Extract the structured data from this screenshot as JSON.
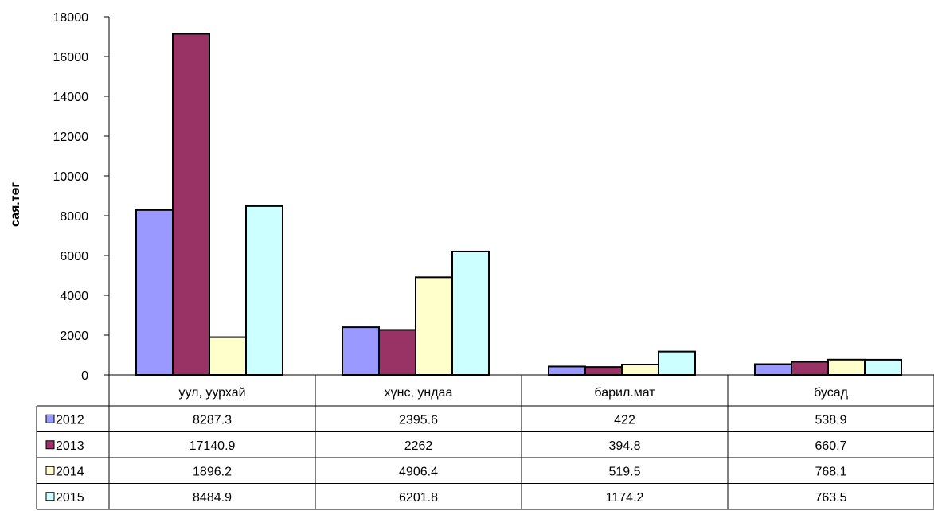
{
  "chart_data": {
    "type": "bar",
    "title": "",
    "xlabel": "",
    "ylabel": "сая.төг",
    "ylim": [
      0,
      18000
    ],
    "yticks": [
      0,
      2000,
      4000,
      6000,
      8000,
      10000,
      12000,
      14000,
      16000,
      18000
    ],
    "grid": false,
    "legend": "data-table",
    "categories": [
      "уул, уурхай",
      "хүнс, ундаа",
      "барил.мат",
      "бусад"
    ],
    "series": [
      {
        "name": "2012",
        "color": "#9999FF",
        "values": [
          8287.3,
          2395.6,
          422,
          538.9
        ],
        "labels": [
          "8287.3",
          "2395.6",
          "422",
          "538.9"
        ]
      },
      {
        "name": "2013",
        "color": "#993366",
        "values": [
          17140.9,
          2262,
          394.8,
          660.7
        ],
        "labels": [
          "17140.9",
          "2262",
          "394.8",
          "660.7"
        ]
      },
      {
        "name": "2014",
        "color": "#FFFFCC",
        "values": [
          1896.2,
          4906.4,
          519.5,
          768.1
        ],
        "labels": [
          "1896.2",
          "4906.4",
          "519.5",
          "768.1"
        ]
      },
      {
        "name": "2015",
        "color": "#CCFFFF",
        "values": [
          8484.9,
          6201.8,
          1174.2,
          763.5
        ],
        "labels": [
          "8484.9",
          "6201.8",
          "1174.2",
          "763.5"
        ]
      }
    ]
  }
}
